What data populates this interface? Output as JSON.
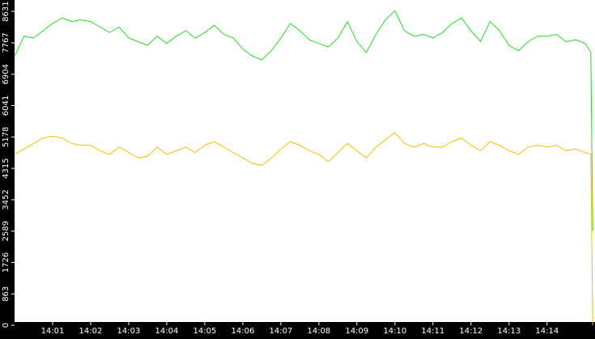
{
  "chart_data": {
    "type": "line",
    "x": [
      0,
      0.25,
      0.5,
      0.75,
      1,
      1.25,
      1.5,
      1.75,
      2,
      2.25,
      2.5,
      2.75,
      3,
      3.25,
      3.5,
      3.75,
      4,
      4.25,
      4.5,
      4.75,
      5,
      5.25,
      5.5,
      5.75,
      6,
      6.25,
      6.5,
      6.75,
      7,
      7.25,
      7.5,
      7.75,
      8,
      8.25,
      8.5,
      8.75,
      9,
      9.25,
      9.5,
      9.75,
      10,
      10.25,
      10.5,
      10.75,
      11,
      11.25,
      11.5,
      11.75,
      12,
      12.25,
      12.5,
      12.75,
      13,
      13.25,
      13.5,
      13.75,
      14,
      14.25,
      14.5,
      14.75,
      15,
      15.15,
      15.2
    ],
    "series": [
      {
        "color": "#22dd22",
        "values": [
          7400,
          7950,
          7900,
          8100,
          8300,
          8450,
          8350,
          8400,
          8350,
          8200,
          8050,
          8200,
          7900,
          7800,
          7700,
          7950,
          7750,
          7950,
          8100,
          7900,
          8050,
          8250,
          8000,
          7900,
          7600,
          7400,
          7300,
          7550,
          7900,
          8300,
          8100,
          7850,
          7750,
          7650,
          7900,
          8350,
          7800,
          7500,
          8000,
          8400,
          8650,
          8100,
          7950,
          8000,
          7900,
          8050,
          8300,
          8450,
          8100,
          7800,
          8350,
          8100,
          7700,
          7550,
          7800,
          7950,
          7950,
          8000,
          7800,
          7850,
          7750,
          7500,
          2600
        ]
      },
      {
        "color": "#f0c000",
        "values": [
          4700,
          4850,
          5000,
          5150,
          5200,
          5150,
          5000,
          4950,
          4950,
          4800,
          4700,
          4900,
          4750,
          4600,
          4650,
          4900,
          4700,
          4800,
          4900,
          4750,
          4950,
          5050,
          4900,
          4750,
          4600,
          4450,
          4400,
          4600,
          4850,
          5050,
          4950,
          4800,
          4700,
          4500,
          4750,
          5000,
          4800,
          4600,
          4900,
          5100,
          5300,
          5000,
          4900,
          5000,
          4900,
          4900,
          5050,
          5150,
          4950,
          4800,
          5050,
          4950,
          4800,
          4700,
          4900,
          4950,
          4900,
          4950,
          4800,
          4850,
          4750,
          4700,
          0
        ]
      }
    ],
    "xlim": [
      0,
      15.26
    ],
    "ylim": [
      90,
      8945
    ],
    "xticks": [
      {
        "value": 1,
        "label": "14:01"
      },
      {
        "value": 2,
        "label": "14:02"
      },
      {
        "value": 3,
        "label": "14:03"
      },
      {
        "value": 4,
        "label": "14:04"
      },
      {
        "value": 5,
        "label": "14:05"
      },
      {
        "value": 6,
        "label": "14:06"
      },
      {
        "value": 7,
        "label": "14:07"
      },
      {
        "value": 8,
        "label": "14:08"
      },
      {
        "value": 9,
        "label": "14:09"
      },
      {
        "value": 10,
        "label": "14:10"
      },
      {
        "value": 11,
        "label": "14:11"
      },
      {
        "value": 12,
        "label": "14:12"
      },
      {
        "value": 13,
        "label": "14:13"
      },
      {
        "value": 14,
        "label": "14:14"
      }
    ],
    "yticks": [
      0,
      863,
      1726,
      2589,
      3452,
      4315,
      5178,
      6041,
      6904,
      7767,
      8631
    ]
  }
}
